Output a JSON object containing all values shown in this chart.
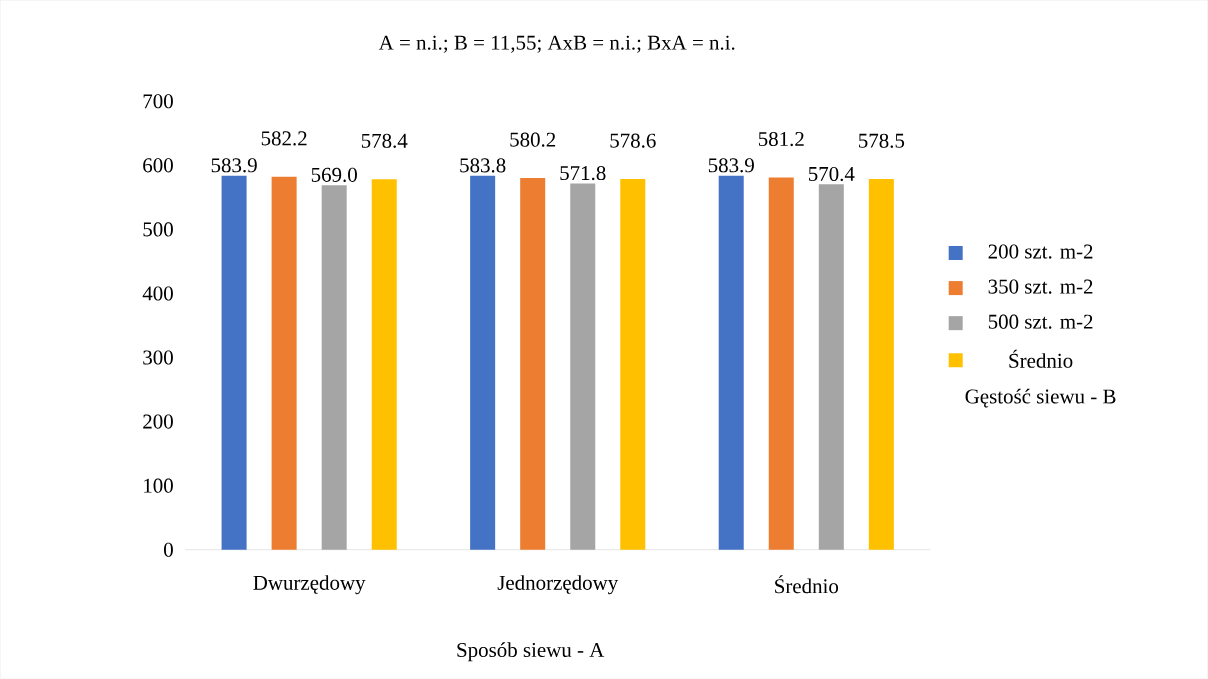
{
  "chart_data": {
    "type": "bar",
    "title": "A = n.i.;   B = 11,55;   AxB = n.i.;   BxA = n.i.",
    "xlabel": "Sposób siewu - A",
    "legend_title": "Gęstość siewu - B",
    "categories": [
      "Dwurzędowy",
      "Jednorzędowy",
      "Średnio"
    ],
    "series": [
      {
        "name": "200 szt. m-2",
        "color": "#4472c4",
        "values": [
          583.9,
          583.8,
          583.9
        ],
        "value_labels": [
          "583.9",
          "583.8",
          "583.9"
        ]
      },
      {
        "name": "350 szt. m-2",
        "color": "#ed7d31",
        "values": [
          582.2,
          580.2,
          581.2
        ],
        "value_labels": [
          "582.2",
          "580.2",
          "581.2"
        ]
      },
      {
        "name": "500 szt. m-2",
        "color": "#a5a5a5",
        "values": [
          569.0,
          571.8,
          570.4
        ],
        "value_labels": [
          "569.0",
          "571.8",
          "570.4"
        ]
      },
      {
        "name": "Średnio",
        "color": "#ffc000",
        "values": [
          578.4,
          578.6,
          578.5
        ],
        "value_labels": [
          "578.4",
          "578.6",
          "578.5"
        ]
      }
    ],
    "ylim": [
      0,
      700
    ],
    "yticks": [
      0,
      100,
      200,
      300,
      400,
      500,
      600,
      700
    ],
    "grid": false,
    "legend": "right"
  }
}
